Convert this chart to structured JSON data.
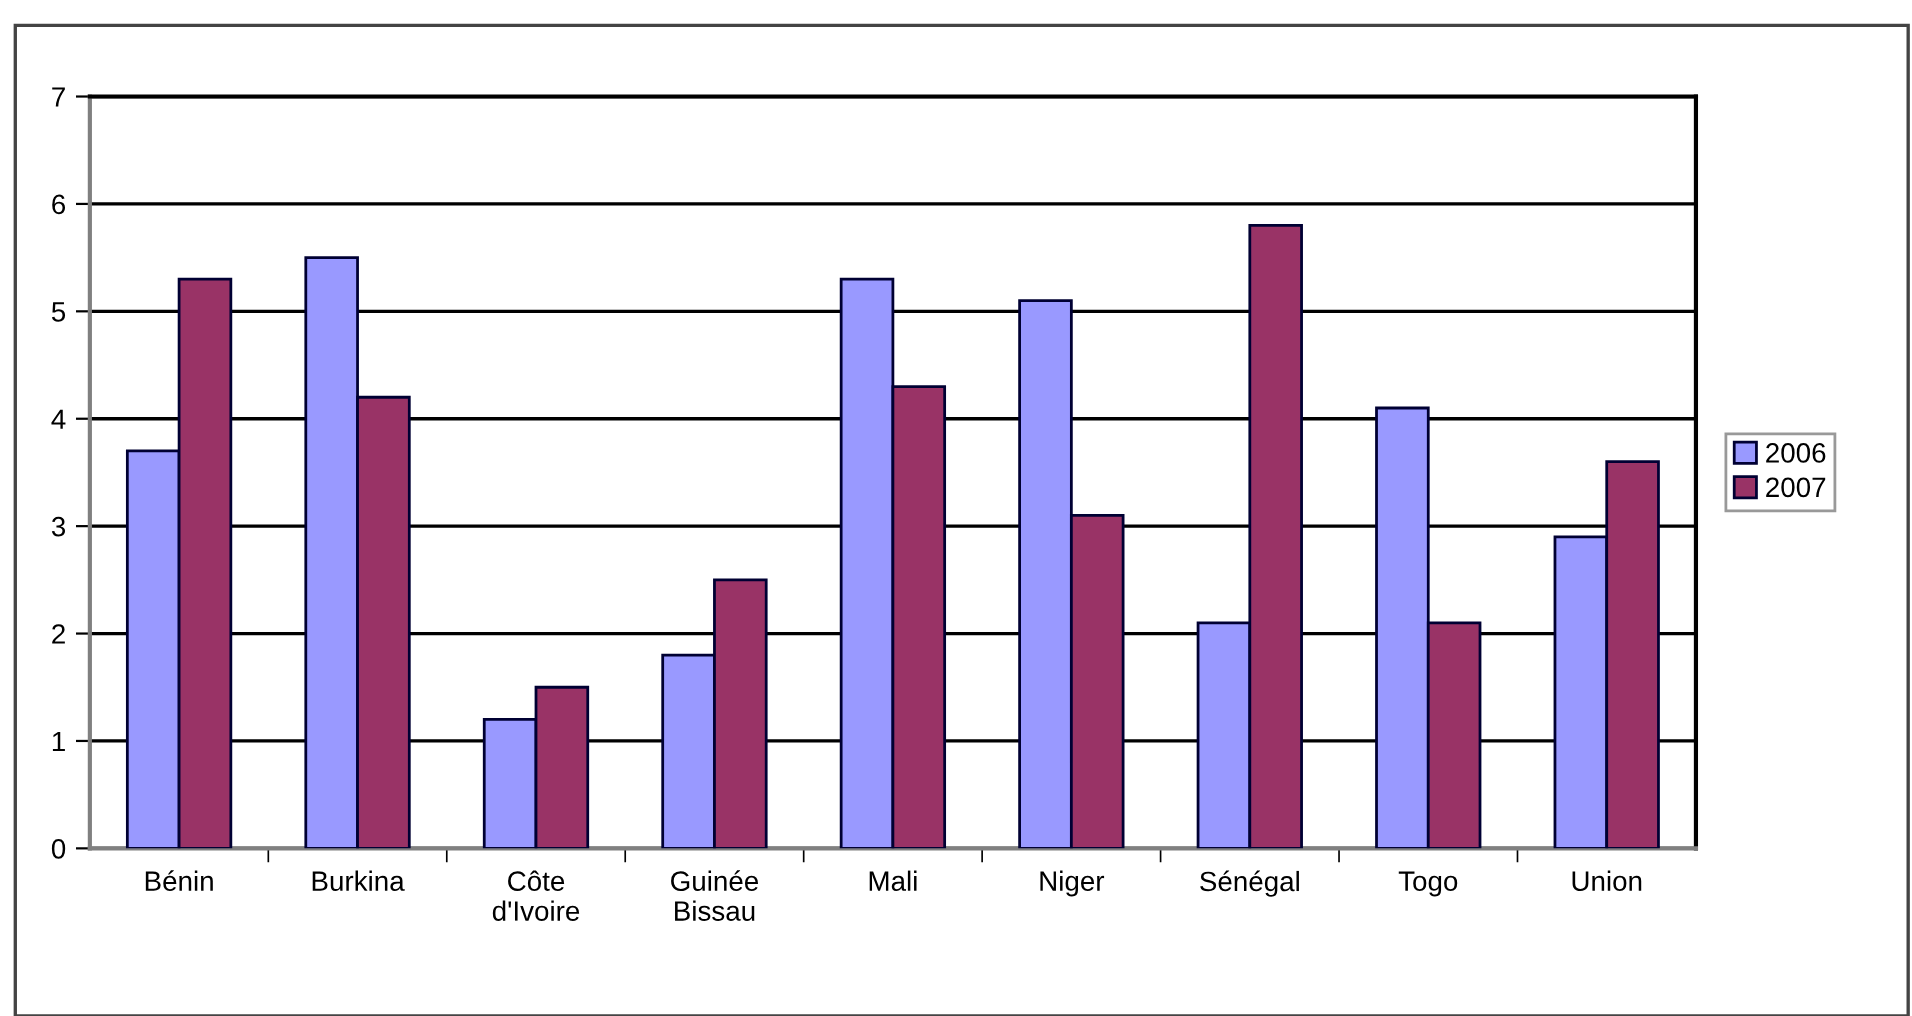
{
  "chart_data": {
    "type": "bar",
    "categories": [
      "Bénin",
      "Burkina",
      "Côte\nd'Ivoire",
      "Guinée\nBissau",
      "Mali",
      "Niger",
      "Sénégal",
      "Togo",
      "Union"
    ],
    "series": [
      {
        "name": "2006",
        "color": "#9999ff",
        "values": [
          3.7,
          5.5,
          1.2,
          1.8,
          5.3,
          5.1,
          2.1,
          4.1,
          2.9
        ]
      },
      {
        "name": "2007",
        "color": "#993366",
        "values": [
          5.3,
          4.2,
          1.5,
          2.5,
          4.3,
          3.1,
          5.8,
          2.1,
          3.6
        ]
      }
    ],
    "ylim": [
      0,
      7
    ],
    "yticks": [
      0,
      1,
      2,
      3,
      4,
      5,
      6,
      7
    ],
    "grid": "y",
    "legend": "right"
  }
}
